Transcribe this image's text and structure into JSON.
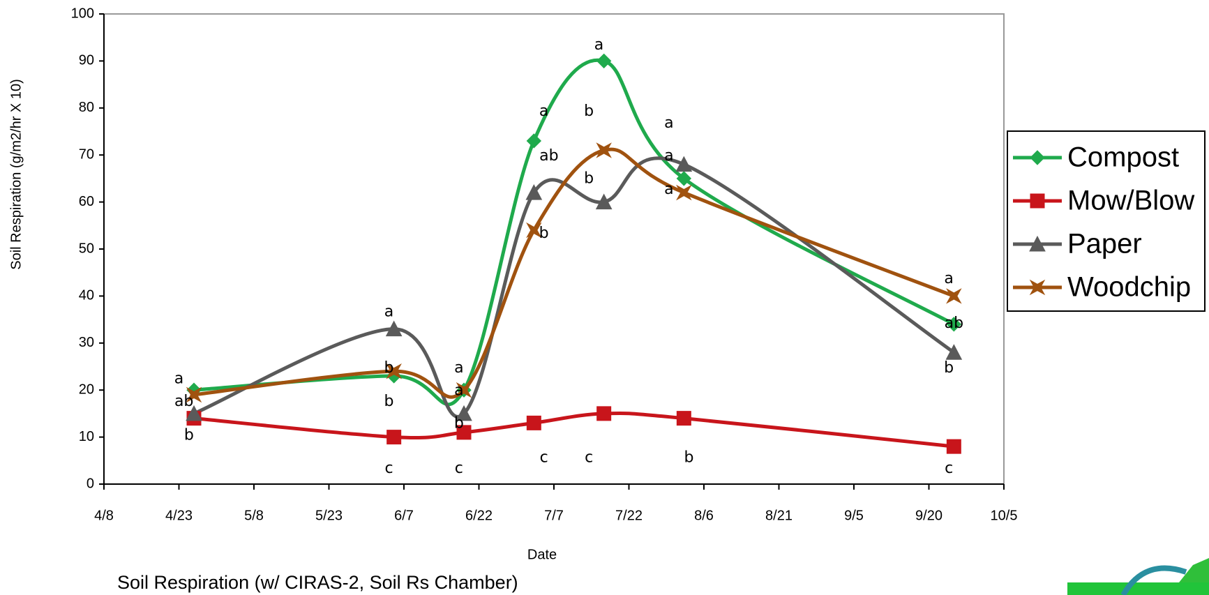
{
  "chart_data": {
    "type": "line",
    "x_label": "Date",
    "y_label": "Soil Respiration (g/m2/hr X 10)",
    "caption": "Soil Respiration (w/ CIRAS-2, Soil Rs Chamber)",
    "x": [
      "4/26",
      "6/5",
      "6/19",
      "7/3",
      "7/17",
      "8/2",
      "9/25"
    ],
    "series": [
      {
        "name": "Compost",
        "color": "#1faa4c",
        "marker": "diamond",
        "values": [
          20,
          23,
          20,
          73,
          90,
          65,
          34
        ]
      },
      {
        "name": "Mow/Blow",
        "color": "#c8151b",
        "marker": "square",
        "values": [
          14,
          10,
          11,
          13,
          15,
          14,
          8
        ]
      },
      {
        "name": "Paper",
        "color": "#5a5a5a",
        "marker": "triangle",
        "values": [
          15,
          33,
          15,
          62,
          60,
          68,
          28
        ]
      },
      {
        "name": "Woodchip",
        "color": "#a0520f",
        "marker": "star",
        "values": [
          19,
          24,
          20,
          54,
          71,
          62,
          40
        ]
      }
    ],
    "xlim": [
      "4/8",
      "10/5"
    ],
    "xticks": [
      "4/8",
      "4/23",
      "5/8",
      "5/23",
      "6/7",
      "6/22",
      "7/7",
      "7/22",
      "8/6",
      "8/21",
      "9/5",
      "9/20",
      "10/5"
    ],
    "ylim": [
      0,
      100
    ],
    "yticks": [
      0,
      10,
      20,
      30,
      40,
      50,
      60,
      70,
      80,
      90,
      100
    ],
    "smooth": true,
    "legend": "right",
    "annotations": [
      {
        "text": "a",
        "x": "4/23",
        "y": 22.3
      },
      {
        "text": "ab",
        "x": "4/24",
        "y": 17.5
      },
      {
        "text": "b",
        "x": "4/25",
        "y": 10.3
      },
      {
        "text": "a",
        "x": "6/4",
        "y": 36.6
      },
      {
        "text": "b",
        "x": "6/4",
        "y": 24.6
      },
      {
        "text": "b",
        "x": "6/4",
        "y": 17.5
      },
      {
        "text": "c",
        "x": "6/4",
        "y": 3.3
      },
      {
        "text": "a",
        "x": "6/18",
        "y": 24.6
      },
      {
        "text": "a",
        "x": "6/18",
        "y": 19.8
      },
      {
        "text": "b",
        "x": "6/18",
        "y": 12.8
      },
      {
        "text": "c",
        "x": "6/18",
        "y": 3.3
      },
      {
        "text": "a",
        "x": "7/5",
        "y": 79.2
      },
      {
        "text": "ab",
        "x": "7/6",
        "y": 69.7
      },
      {
        "text": "b",
        "x": "7/5",
        "y": 53.3
      },
      {
        "text": "c",
        "x": "7/5",
        "y": 5.6
      },
      {
        "text": "a",
        "x": "7/16",
        "y": 93.3
      },
      {
        "text": "b",
        "x": "7/14",
        "y": 79.2
      },
      {
        "text": "b",
        "x": "7/14",
        "y": 64.9
      },
      {
        "text": "c",
        "x": "7/14",
        "y": 5.6
      },
      {
        "text": "a",
        "x": "7/30",
        "y": 76.7
      },
      {
        "text": "a",
        "x": "7/30",
        "y": 69.7
      },
      {
        "text": "a",
        "x": "7/30",
        "y": 62.6
      },
      {
        "text": "b",
        "x": "8/3",
        "y": 5.6
      },
      {
        "text": "a",
        "x": "9/24",
        "y": 43.6
      },
      {
        "text": "ab",
        "x": "9/25",
        "y": 34.1
      },
      {
        "text": "b",
        "x": "9/24",
        "y": 24.6
      },
      {
        "text": "c",
        "x": "9/24",
        "y": 3.3
      }
    ]
  }
}
